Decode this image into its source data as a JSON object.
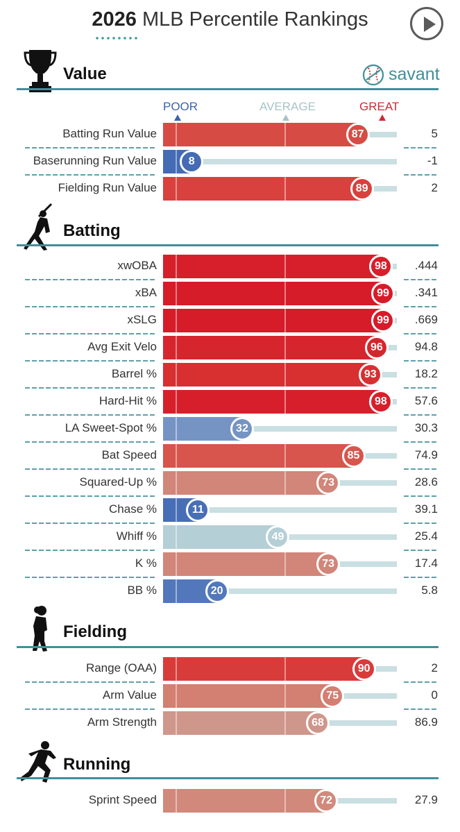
{
  "header": {
    "title_year": "2026",
    "title_rest": "MLB Percentile Rankings",
    "play_icon": "play-icon"
  },
  "brand": {
    "name": "savant",
    "icon": "baseball-icon"
  },
  "scale": {
    "poor": "POOR",
    "average": "AVERAGE",
    "great": "GREAT"
  },
  "colors": {
    "section_line": "#3f8f98",
    "poor_label": "#3b63b0",
    "average_label": "#a7c4c8",
    "great_label": "#cc2a35",
    "track": "#c9dfe2"
  },
  "chart_data": {
    "type": "bar",
    "orientation": "horizontal",
    "xlim": [
      0,
      100
    ],
    "sections": [
      {
        "title": "Value",
        "icon": "trophy-icon",
        "metrics": [
          {
            "label": "Batting Run Value",
            "percentile": 87,
            "value": "5"
          },
          {
            "label": "Baserunning Run Value",
            "percentile": 8,
            "value": "-1"
          },
          {
            "label": "Fielding Run Value",
            "percentile": 89,
            "value": "2"
          }
        ]
      },
      {
        "title": "Batting",
        "icon": "batter-icon",
        "metrics": [
          {
            "label": "xwOBA",
            "percentile": 98,
            "value": ".444"
          },
          {
            "label": "xBA",
            "percentile": 99,
            "value": ".341"
          },
          {
            "label": "xSLG",
            "percentile": 99,
            "value": ".669"
          },
          {
            "label": "Avg Exit Velo",
            "percentile": 96,
            "value": "94.8"
          },
          {
            "label": "Barrel %",
            "percentile": 93,
            "value": "18.2"
          },
          {
            "label": "Hard-Hit %",
            "percentile": 98,
            "value": "57.6"
          },
          {
            "label": "LA Sweet-Spot %",
            "percentile": 32,
            "value": "30.3"
          },
          {
            "label": "Bat Speed",
            "percentile": 85,
            "value": "74.9"
          },
          {
            "label": "Squared-Up %",
            "percentile": 73,
            "value": "28.6"
          },
          {
            "label": "Chase %",
            "percentile": 11,
            "value": "39.1"
          },
          {
            "label": "Whiff %",
            "percentile": 49,
            "value": "25.4"
          },
          {
            "label": "K %",
            "percentile": 73,
            "value": "17.4"
          },
          {
            "label": "BB %",
            "percentile": 20,
            "value": "5.8"
          }
        ]
      },
      {
        "title": "Fielding",
        "icon": "fielder-icon",
        "metrics": [
          {
            "label": "Range (OAA)",
            "percentile": 90,
            "value": "2"
          },
          {
            "label": "Arm Value",
            "percentile": 75,
            "value": "0"
          },
          {
            "label": "Arm Strength",
            "percentile": 68,
            "value": "86.9"
          }
        ]
      },
      {
        "title": "Running",
        "icon": "runner-icon",
        "metrics": [
          {
            "label": "Sprint Speed",
            "percentile": 72,
            "value": "27.9"
          }
        ]
      }
    ]
  }
}
